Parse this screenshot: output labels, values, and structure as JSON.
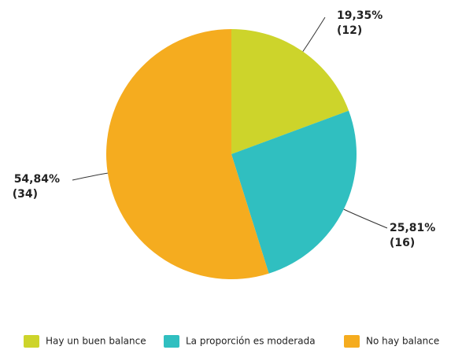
{
  "chart_data": {
    "type": "pie",
    "categories": [
      "Hay un buen balance",
      "La proporción es moderada",
      "No hay balance"
    ],
    "values": [
      19.35,
      25.81,
      54.84
    ],
    "value_labels": [
      "19,35%",
      "25,81%",
      "54,84%"
    ],
    "counts": [
      12,
      16,
      34
    ],
    "count_labels": [
      "(12)",
      "(16)",
      "(34)"
    ],
    "colors": [
      "#cdd42b",
      "#30bfc0",
      "#f5ac1f"
    ],
    "legend": "bottom"
  }
}
